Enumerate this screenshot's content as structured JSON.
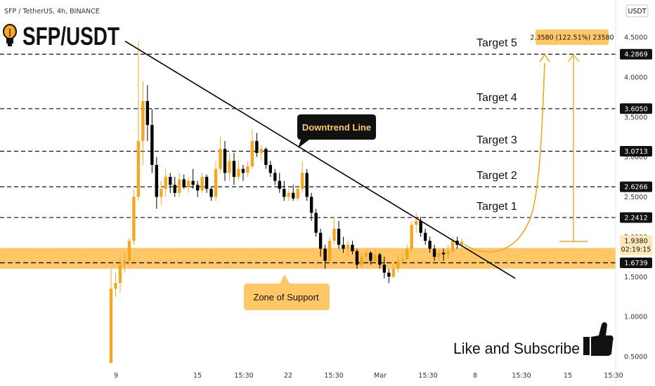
{
  "header": {
    "symbol_line": "SFP / TetherUS, 4h, BINANCE",
    "title": "SFP/USDT",
    "currency_button": "USDT"
  },
  "annotations": {
    "downtrend_label": "Downtrend Line",
    "support_label": "Zone of Support",
    "subscribe_label": "Like and Subscribe",
    "measure_label": "2.3580 (122.51%) 23580"
  },
  "targets": [
    {
      "label": "Target 5",
      "price": 4.2869,
      "tag": "4.2869"
    },
    {
      "label": "Target 4",
      "price": 3.605,
      "tag": "3.6050"
    },
    {
      "label": "Target 3",
      "price": 3.0713,
      "tag": "3.0713"
    },
    {
      "label": "Target 2",
      "price": 2.6266,
      "tag": "2.6266"
    },
    {
      "label": "Target 1",
      "price": 2.2412,
      "tag": "2.2412"
    }
  ],
  "current": {
    "price": 1.938,
    "tag": "1.9380",
    "countdown": "02:19:15"
  },
  "support": {
    "price": 1.6739,
    "tag": "1.6739",
    "zone_low": 1.6,
    "zone_high": 1.86
  },
  "colors": {
    "bullish": "#f5a623",
    "bearish": "#000000",
    "zone": "#ffc766",
    "orange": "#f5a623",
    "tag_dark": "#111111",
    "current_tag": "#ffe7b8"
  },
  "chart_data": {
    "type": "candlestick",
    "symbol": "SFP / TetherUS",
    "interval": "4h",
    "exchange": "BINANCE",
    "y_ticks": [
      4.5,
      4.0,
      3.5,
      3.0,
      2.5,
      2.0,
      1.5,
      1.0,
      0.5
    ],
    "y_tick_labels": [
      "4.5000",
      "4.0000",
      "3.5000",
      "3.0000",
      "2.5000",
      "2.0000",
      "1.5000",
      "1.0000",
      "0.5000"
    ],
    "x_tick_labels": [
      "9",
      "15",
      "15:30",
      "22",
      "15:30",
      "Mar",
      "15:30",
      "8",
      "15:30",
      "15",
      "15:30"
    ],
    "ylim": [
      0.4,
      4.75
    ],
    "candles": [
      {
        "o": 0.42,
        "h": 1.6,
        "l": 0.42,
        "c": 1.35
      },
      {
        "o": 1.35,
        "h": 1.55,
        "l": 1.25,
        "c": 1.42
      },
      {
        "o": 1.42,
        "h": 1.75,
        "l": 1.3,
        "c": 1.65
      },
      {
        "o": 1.65,
        "h": 1.8,
        "l": 1.55,
        "c": 1.7
      },
      {
        "o": 1.7,
        "h": 1.98,
        "l": 1.65,
        "c": 1.95
      },
      {
        "o": 1.95,
        "h": 2.6,
        "l": 1.9,
        "c": 2.5
      },
      {
        "o": 2.5,
        "h": 4.45,
        "l": 2.45,
        "c": 3.2
      },
      {
        "o": 3.2,
        "h": 3.95,
        "l": 2.9,
        "c": 3.7
      },
      {
        "o": 3.7,
        "h": 3.9,
        "l": 3.2,
        "c": 3.4
      },
      {
        "o": 3.4,
        "h": 3.6,
        "l": 2.8,
        "c": 2.9
      },
      {
        "o": 2.9,
        "h": 3.0,
        "l": 2.35,
        "c": 2.5
      },
      {
        "o": 2.5,
        "h": 2.7,
        "l": 2.4,
        "c": 2.6
      },
      {
        "o": 2.6,
        "h": 2.85,
        "l": 2.5,
        "c": 2.75
      },
      {
        "o": 2.75,
        "h": 2.8,
        "l": 2.55,
        "c": 2.65
      },
      {
        "o": 2.65,
        "h": 2.75,
        "l": 2.5,
        "c": 2.55
      },
      {
        "o": 2.55,
        "h": 2.8,
        "l": 2.5,
        "c": 2.72
      },
      {
        "o": 2.72,
        "h": 2.78,
        "l": 2.6,
        "c": 2.62
      },
      {
        "o": 2.62,
        "h": 2.75,
        "l": 2.55,
        "c": 2.7
      },
      {
        "o": 2.7,
        "h": 2.85,
        "l": 2.6,
        "c": 2.65
      },
      {
        "o": 2.65,
        "h": 2.7,
        "l": 2.5,
        "c": 2.58
      },
      {
        "o": 2.58,
        "h": 2.8,
        "l": 2.55,
        "c": 2.75
      },
      {
        "o": 2.75,
        "h": 2.78,
        "l": 2.55,
        "c": 2.6
      },
      {
        "o": 2.6,
        "h": 2.62,
        "l": 2.45,
        "c": 2.5
      },
      {
        "o": 2.5,
        "h": 2.95,
        "l": 2.45,
        "c": 2.85
      },
      {
        "o": 2.85,
        "h": 3.25,
        "l": 2.8,
        "c": 3.1
      },
      {
        "o": 3.1,
        "h": 3.2,
        "l": 2.7,
        "c": 2.8
      },
      {
        "o": 2.8,
        "h": 3.05,
        "l": 2.7,
        "c": 2.95
      },
      {
        "o": 2.95,
        "h": 3.05,
        "l": 2.65,
        "c": 2.75
      },
      {
        "o": 2.75,
        "h": 2.95,
        "l": 2.7,
        "c": 2.85
      },
      {
        "o": 2.85,
        "h": 2.9,
        "l": 2.7,
        "c": 2.8
      },
      {
        "o": 2.8,
        "h": 2.95,
        "l": 2.75,
        "c": 2.88
      },
      {
        "o": 2.88,
        "h": 3.35,
        "l": 2.85,
        "c": 3.2
      },
      {
        "o": 3.2,
        "h": 3.3,
        "l": 3.0,
        "c": 3.05
      },
      {
        "o": 3.05,
        "h": 3.15,
        "l": 2.95,
        "c": 3.1
      },
      {
        "o": 3.1,
        "h": 3.12,
        "l": 2.85,
        "c": 2.9
      },
      {
        "o": 2.9,
        "h": 2.95,
        "l": 2.75,
        "c": 2.8
      },
      {
        "o": 2.8,
        "h": 2.85,
        "l": 2.65,
        "c": 2.7
      },
      {
        "o": 2.7,
        "h": 2.8,
        "l": 2.55,
        "c": 2.6
      },
      {
        "o": 2.6,
        "h": 2.7,
        "l": 2.45,
        "c": 2.5
      },
      {
        "o": 2.5,
        "h": 2.6,
        "l": 2.45,
        "c": 2.55
      },
      {
        "o": 2.55,
        "h": 2.65,
        "l": 2.45,
        "c": 2.48
      },
      {
        "o": 2.48,
        "h": 2.65,
        "l": 2.45,
        "c": 2.6
      },
      {
        "o": 2.6,
        "h": 2.95,
        "l": 2.55,
        "c": 2.8
      },
      {
        "o": 2.8,
        "h": 2.85,
        "l": 2.45,
        "c": 2.5
      },
      {
        "o": 2.5,
        "h": 2.55,
        "l": 2.2,
        "c": 2.3
      },
      {
        "o": 2.3,
        "h": 2.35,
        "l": 2.0,
        "c": 2.05
      },
      {
        "o": 2.05,
        "h": 2.1,
        "l": 1.75,
        "c": 1.85
      },
      {
        "o": 1.85,
        "h": 1.9,
        "l": 1.6,
        "c": 1.7
      },
      {
        "o": 1.7,
        "h": 2.0,
        "l": 1.65,
        "c": 1.95
      },
      {
        "o": 1.95,
        "h": 2.25,
        "l": 1.9,
        "c": 2.1
      },
      {
        "o": 2.1,
        "h": 2.2,
        "l": 1.85,
        "c": 1.9
      },
      {
        "o": 1.9,
        "h": 2.0,
        "l": 1.8,
        "c": 1.85
      },
      {
        "o": 1.85,
        "h": 1.95,
        "l": 1.75,
        "c": 1.9
      },
      {
        "o": 1.9,
        "h": 1.95,
        "l": 1.78,
        "c": 1.82
      },
      {
        "o": 1.82,
        "h": 1.85,
        "l": 1.6,
        "c": 1.65
      },
      {
        "o": 1.65,
        "h": 1.8,
        "l": 1.6,
        "c": 1.75
      },
      {
        "o": 1.75,
        "h": 1.85,
        "l": 1.7,
        "c": 1.8
      },
      {
        "o": 1.8,
        "h": 1.82,
        "l": 1.65,
        "c": 1.7
      },
      {
        "o": 1.7,
        "h": 1.85,
        "l": 1.68,
        "c": 1.78
      },
      {
        "o": 1.78,
        "h": 1.8,
        "l": 1.6,
        "c": 1.65
      },
      {
        "o": 1.65,
        "h": 1.75,
        "l": 1.48,
        "c": 1.55
      },
      {
        "o": 1.55,
        "h": 1.6,
        "l": 1.42,
        "c": 1.5
      },
      {
        "o": 1.5,
        "h": 1.65,
        "l": 1.48,
        "c": 1.6
      },
      {
        "o": 1.6,
        "h": 1.75,
        "l": 1.55,
        "c": 1.7
      },
      {
        "o": 1.7,
        "h": 1.8,
        "l": 1.65,
        "c": 1.72
      },
      {
        "o": 1.72,
        "h": 1.9,
        "l": 1.7,
        "c": 1.85
      },
      {
        "o": 1.85,
        "h": 2.2,
        "l": 1.8,
        "c": 2.15
      },
      {
        "o": 2.15,
        "h": 2.3,
        "l": 2.05,
        "c": 2.2
      },
      {
        "o": 2.2,
        "h": 2.25,
        "l": 2.0,
        "c": 2.05
      },
      {
        "o": 2.05,
        "h": 2.1,
        "l": 1.9,
        "c": 1.95
      },
      {
        "o": 1.95,
        "h": 2.0,
        "l": 1.8,
        "c": 1.85
      },
      {
        "o": 1.85,
        "h": 1.9,
        "l": 1.7,
        "c": 1.75
      },
      {
        "o": 1.75,
        "h": 1.85,
        "l": 1.68,
        "c": 1.8
      },
      {
        "o": 1.8,
        "h": 1.85,
        "l": 1.7,
        "c": 1.78
      },
      {
        "o": 1.78,
        "h": 1.9,
        "l": 1.72,
        "c": 1.82
      },
      {
        "o": 1.82,
        "h": 2.0,
        "l": 1.8,
        "c": 1.95
      },
      {
        "o": 1.95,
        "h": 2.0,
        "l": 1.85,
        "c": 1.9
      },
      {
        "o": 1.9,
        "h": 1.98,
        "l": 1.85,
        "c": 1.94
      }
    ]
  }
}
